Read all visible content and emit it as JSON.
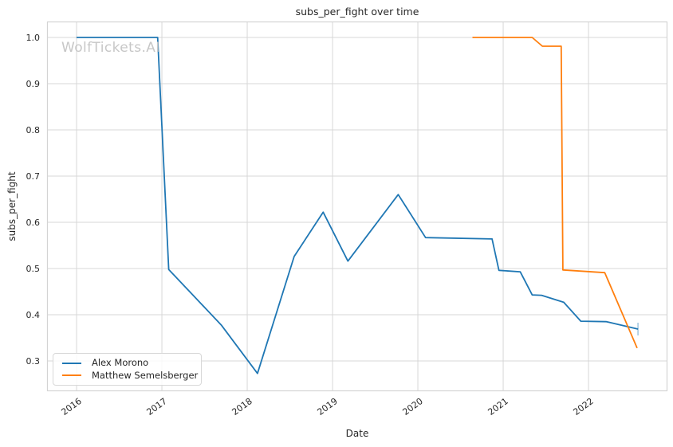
{
  "watermark": "WolfTickets.AI",
  "chart_data": {
    "type": "line",
    "title": "subs_per_fight over time",
    "xlabel": "Date",
    "ylabel": "subs_per_fight",
    "grid": true,
    "legend_position": "lower left",
    "xlim": [
      2015.654,
      2022.925
    ],
    "ylim": [
      0.2345,
      1.0345
    ],
    "x_ticks": [
      2016,
      2017,
      2018,
      2019,
      2020,
      2021,
      2022
    ],
    "y_ticks": [
      0.3,
      0.4,
      0.5,
      0.6,
      0.7,
      0.8,
      0.9,
      1.0
    ],
    "colors": {
      "grid": "#d7d7d7",
      "spine": "#d4d4d4",
      "text": "#262626",
      "watermark": "#c7c7c7"
    },
    "series": [
      {
        "name": "Alex Morono",
        "color": "#1f77b4",
        "end_tick": true,
        "points": [
          [
            2016.0,
            1.0
          ],
          [
            2016.95,
            1.0
          ],
          [
            2017.08,
            0.498
          ],
          [
            2017.7,
            0.377
          ],
          [
            2018.12,
            0.273
          ],
          [
            2018.55,
            0.526
          ],
          [
            2018.89,
            0.622
          ],
          [
            2019.18,
            0.516
          ],
          [
            2019.77,
            0.66
          ],
          [
            2020.09,
            0.567
          ],
          [
            2020.87,
            0.564
          ],
          [
            2020.95,
            0.496
          ],
          [
            2021.2,
            0.493
          ],
          [
            2021.34,
            0.443
          ],
          [
            2021.45,
            0.442
          ],
          [
            2021.71,
            0.427
          ],
          [
            2021.91,
            0.386
          ],
          [
            2022.21,
            0.385
          ],
          [
            2022.58,
            0.369
          ]
        ]
      },
      {
        "name": "Matthew Semelsberger",
        "color": "#ff7f0e",
        "end_tick": false,
        "points": [
          [
            2020.64,
            1.0
          ],
          [
            2021.34,
            1.0
          ],
          [
            2021.46,
            0.981
          ],
          [
            2021.68,
            0.981
          ],
          [
            2021.7,
            0.497
          ],
          [
            2022.19,
            0.491
          ],
          [
            2022.57,
            0.328
          ]
        ]
      }
    ]
  }
}
